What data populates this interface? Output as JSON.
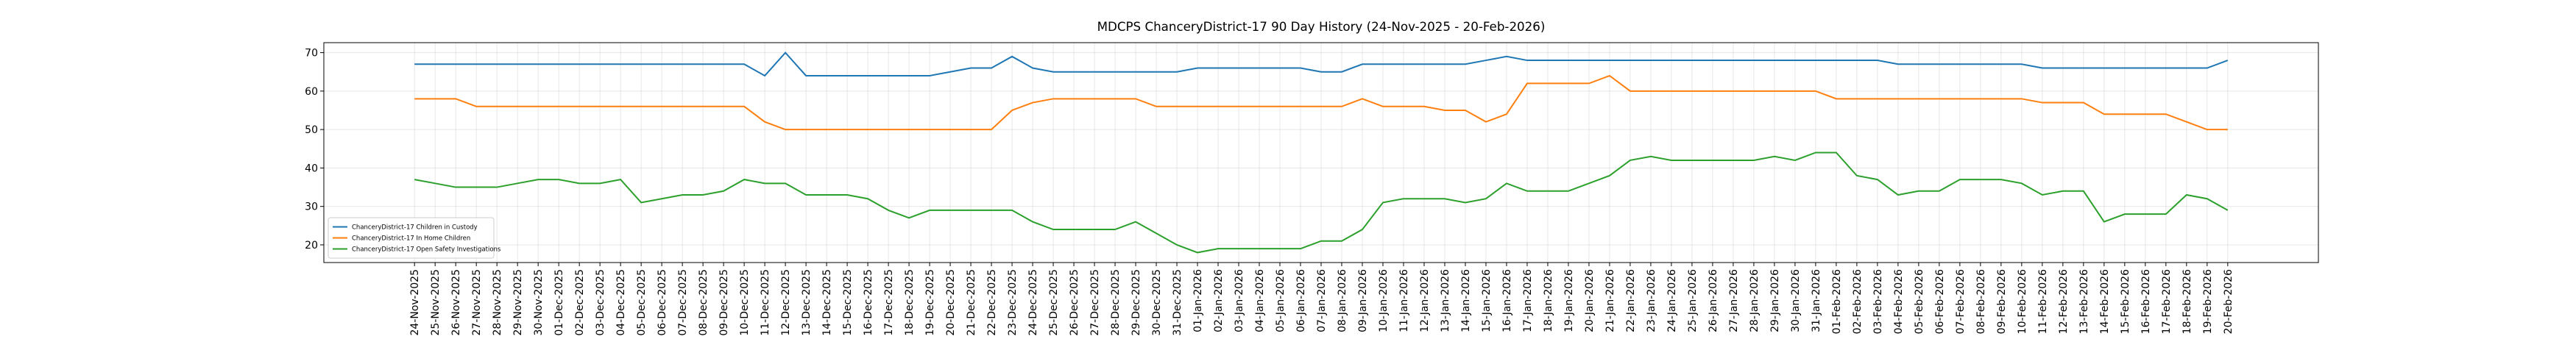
{
  "chart_data": {
    "type": "line",
    "title": "MDCPS ChanceryDistrict-17 90 Day History (24-Nov-2025 - 20-Feb-2026)",
    "categories": [
      "24-Nov-2025",
      "25-Nov-2025",
      "26-Nov-2025",
      "27-Nov-2025",
      "28-Nov-2025",
      "29-Nov-2025",
      "30-Nov-2025",
      "01-Dec-2025",
      "02-Dec-2025",
      "03-Dec-2025",
      "04-Dec-2025",
      "05-Dec-2025",
      "06-Dec-2025",
      "07-Dec-2025",
      "08-Dec-2025",
      "09-Dec-2025",
      "10-Dec-2025",
      "11-Dec-2025",
      "12-Dec-2025",
      "13-Dec-2025",
      "14-Dec-2025",
      "15-Dec-2025",
      "16-Dec-2025",
      "17-Dec-2025",
      "18-Dec-2025",
      "19-Dec-2025",
      "20-Dec-2025",
      "21-Dec-2025",
      "22-Dec-2025",
      "23-Dec-2025",
      "24-Dec-2025",
      "25-Dec-2025",
      "26-Dec-2025",
      "27-Dec-2025",
      "28-Dec-2025",
      "29-Dec-2025",
      "30-Dec-2025",
      "31-Dec-2025",
      "01-Jan-2026",
      "02-Jan-2026",
      "03-Jan-2026",
      "04-Jan-2026",
      "05-Jan-2026",
      "06-Jan-2026",
      "07-Jan-2026",
      "08-Jan-2026",
      "09-Jan-2026",
      "10-Jan-2026",
      "11-Jan-2026",
      "12-Jan-2026",
      "13-Jan-2026",
      "14-Jan-2026",
      "15-Jan-2026",
      "16-Jan-2026",
      "17-Jan-2026",
      "18-Jan-2026",
      "19-Jan-2026",
      "20-Jan-2026",
      "21-Jan-2026",
      "22-Jan-2026",
      "23-Jan-2026",
      "24-Jan-2026",
      "25-Jan-2026",
      "26-Jan-2026",
      "27-Jan-2026",
      "28-Jan-2026",
      "29-Jan-2026",
      "30-Jan-2026",
      "31-Jan-2026",
      "01-Feb-2026",
      "02-Feb-2026",
      "03-Feb-2026",
      "04-Feb-2026",
      "05-Feb-2026",
      "06-Feb-2026",
      "07-Feb-2026",
      "08-Feb-2026",
      "09-Feb-2026",
      "10-Feb-2026",
      "11-Feb-2026",
      "12-Feb-2026",
      "13-Feb-2026",
      "14-Feb-2026",
      "15-Feb-2026",
      "16-Feb-2026",
      "17-Feb-2026",
      "18-Feb-2026",
      "19-Feb-2026",
      "20-Feb-2026"
    ],
    "series": [
      {
        "name": "ChanceryDistrict-17 Children in Custody",
        "color": "#1f77b4",
        "values": [
          67,
          67,
          67,
          67,
          67,
          67,
          67,
          67,
          67,
          67,
          67,
          67,
          67,
          67,
          67,
          67,
          67,
          64,
          70,
          64,
          64,
          64,
          64,
          64,
          64,
          64,
          65,
          66,
          66,
          69,
          66,
          65,
          65,
          65,
          65,
          65,
          65,
          65,
          66,
          66,
          66,
          66,
          66,
          66,
          65,
          65,
          67,
          67,
          67,
          67,
          67,
          67,
          68,
          69,
          68,
          68,
          68,
          68,
          68,
          68,
          68,
          68,
          68,
          68,
          68,
          68,
          68,
          68,
          68,
          68,
          68,
          68,
          67,
          67,
          67,
          67,
          67,
          67,
          67,
          66,
          66,
          66,
          66,
          66,
          66,
          66,
          66,
          66,
          68
        ]
      },
      {
        "name": "ChanceryDistrict-17 In Home Children",
        "color": "#ff7f0e",
        "values": [
          58,
          58,
          58,
          56,
          56,
          56,
          56,
          56,
          56,
          56,
          56,
          56,
          56,
          56,
          56,
          56,
          56,
          52,
          50,
          50,
          50,
          50,
          50,
          50,
          50,
          50,
          50,
          50,
          50,
          55,
          57,
          58,
          58,
          58,
          58,
          58,
          56,
          56,
          56,
          56,
          56,
          56,
          56,
          56,
          56,
          56,
          58,
          56,
          56,
          56,
          55,
          55,
          52,
          54,
          62,
          62,
          62,
          62,
          64,
          60,
          60,
          60,
          60,
          60,
          60,
          60,
          60,
          60,
          60,
          58,
          58,
          58,
          58,
          58,
          58,
          58,
          58,
          58,
          58,
          57,
          57,
          57,
          54,
          54,
          54,
          54,
          52,
          50,
          50
        ]
      },
      {
        "name": "ChanceryDistrict-17 Open Safety Investigations",
        "color": "#2ca02c",
        "values": [
          37,
          36,
          35,
          35,
          35,
          36,
          37,
          37,
          36,
          36,
          37,
          31,
          32,
          33,
          33,
          34,
          37,
          36,
          36,
          33,
          33,
          33,
          32,
          29,
          27,
          29,
          29,
          29,
          29,
          29,
          26,
          24,
          24,
          24,
          24,
          26,
          23,
          20,
          18,
          19,
          19,
          19,
          19,
          19,
          21,
          21,
          24,
          31,
          32,
          32,
          32,
          31,
          32,
          36,
          34,
          34,
          34,
          36,
          38,
          42,
          43,
          42,
          42,
          42,
          42,
          42,
          43,
          42,
          44,
          44,
          38,
          37,
          33,
          34,
          34,
          37,
          37,
          37,
          36,
          33,
          34,
          34,
          26,
          28,
          28,
          28,
          33,
          32,
          29
        ]
      }
    ],
    "ylim": [
      15.4,
      72.6
    ],
    "yticks": [
      20,
      30,
      40,
      50,
      60,
      70
    ],
    "grid": true,
    "legend": "lower left"
  }
}
